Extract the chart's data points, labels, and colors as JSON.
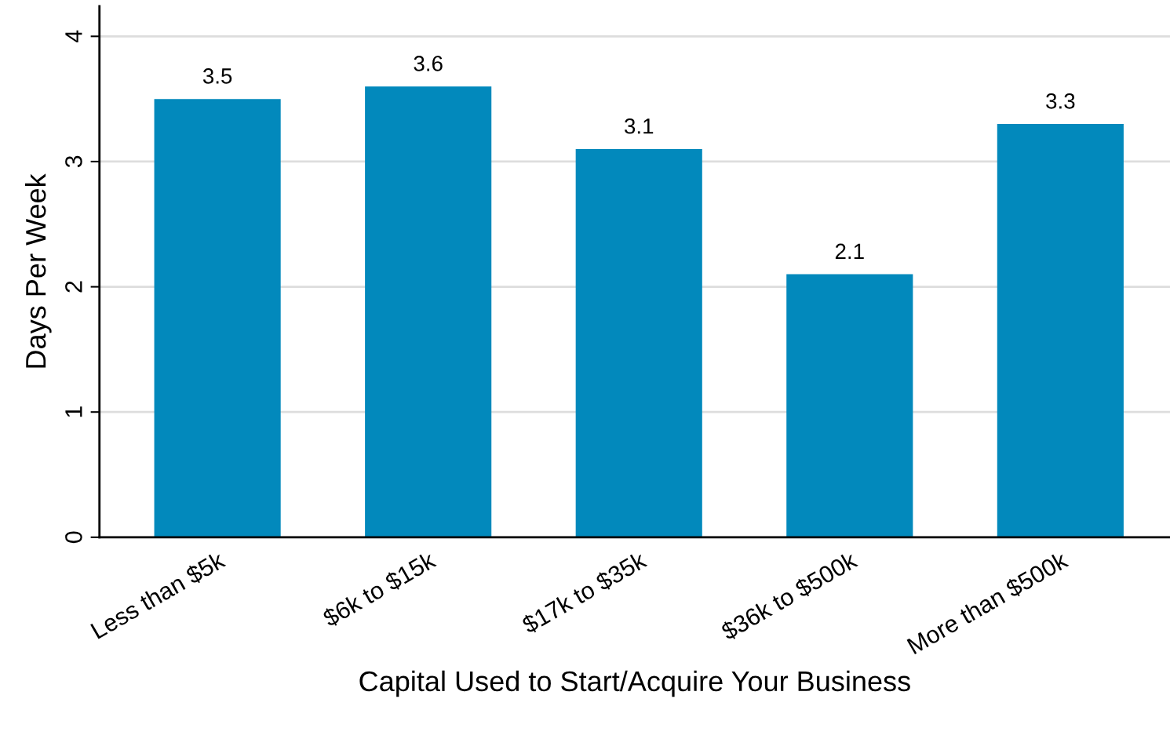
{
  "chart_data": {
    "type": "bar",
    "xlabel": "Capital Used to Start/Acquire Your Business",
    "ylabel": "Days Per Week",
    "categories": [
      "Less than $5k",
      "$6k to $15k",
      "$17k to $35k",
      "$36k to $500k",
      "More than $500k"
    ],
    "values": [
      3.5,
      3.6,
      3.1,
      2.1,
      3.3
    ],
    "color": "#0289bc",
    "ylim": [
      0,
      4.24
    ],
    "yticks": [
      0,
      1,
      2,
      3,
      4
    ],
    "grid": "y",
    "data_labels": true
  }
}
